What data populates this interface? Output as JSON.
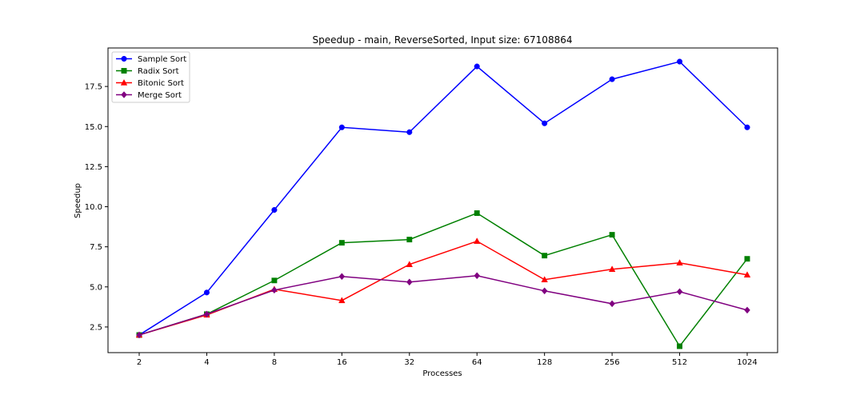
{
  "chart_data": {
    "type": "line",
    "title": "Speedup - main, ReverseSorted, Input size: 67108864",
    "xlabel": "Processes",
    "ylabel": "Speedup",
    "categories": [
      "2",
      "4",
      "8",
      "16",
      "32",
      "64",
      "128",
      "256",
      "512",
      "1024"
    ],
    "ylim": [
      0.9,
      19.9
    ],
    "yticks": [
      "2.5",
      "5.0",
      "7.5",
      "10.0",
      "12.5",
      "15.0",
      "17.5"
    ],
    "grid": false,
    "legend_position": "top-left",
    "series": [
      {
        "name": "Sample Sort",
        "color": "#0000ff",
        "marker": "circle",
        "values": [
          2.0,
          4.65,
          9.8,
          14.95,
          14.65,
          18.75,
          15.2,
          17.95,
          19.05,
          14.95
        ]
      },
      {
        "name": "Radix Sort",
        "color": "#008000",
        "marker": "square",
        "values": [
          2.0,
          3.3,
          5.4,
          7.75,
          7.95,
          9.6,
          6.95,
          8.25,
          1.3,
          6.75
        ]
      },
      {
        "name": "Bitonic Sort",
        "color": "#ff0000",
        "marker": "triangle",
        "values": [
          2.0,
          3.25,
          4.85,
          4.15,
          6.4,
          7.85,
          5.45,
          6.1,
          6.5,
          5.75
        ]
      },
      {
        "name": "Merge Sort",
        "color": "#800080",
        "marker": "diamond",
        "values": [
          2.0,
          3.3,
          4.8,
          5.65,
          5.3,
          5.7,
          4.75,
          3.95,
          4.7,
          3.55
        ]
      }
    ]
  }
}
